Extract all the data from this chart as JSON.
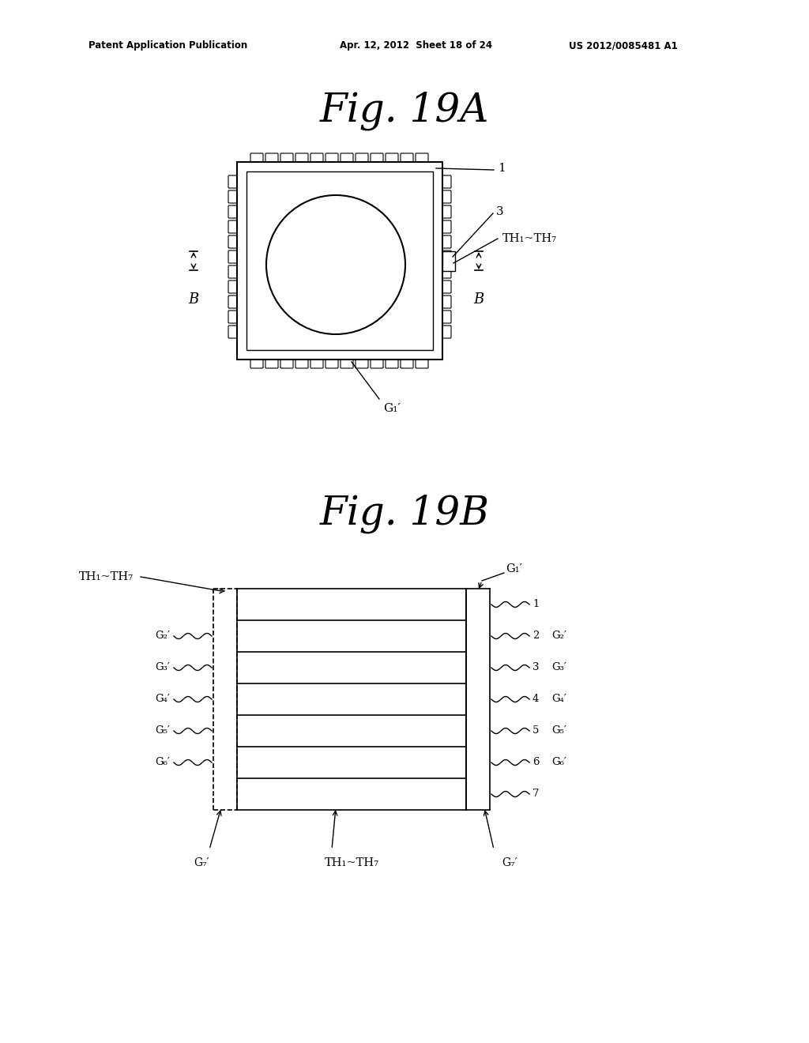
{
  "bg_color": "#ffffff",
  "line_color": "#000000",
  "header_left": "Patent Application Publication",
  "header_mid": "Apr. 12, 2012  Sheet 18 of 24",
  "header_right": "US 2012/0085481 A1",
  "fig_title_19A": "Fig. 19A",
  "fig_title_19B": "Fig. 19B",
  "label_1": "1",
  "label_3": "3",
  "label_TH": "TH₁~TH₇",
  "label_B": "B",
  "label_G1p": "G₁′",
  "label_G2p": "G₂′",
  "label_G3p": "G₃′",
  "label_G4p": "G₄′",
  "label_G5p": "G₅′",
  "label_G6p": "G₆′",
  "label_G7p": "G₇′",
  "layers": [
    "1",
    "2",
    "3",
    "4",
    "5",
    "6",
    "7"
  ]
}
